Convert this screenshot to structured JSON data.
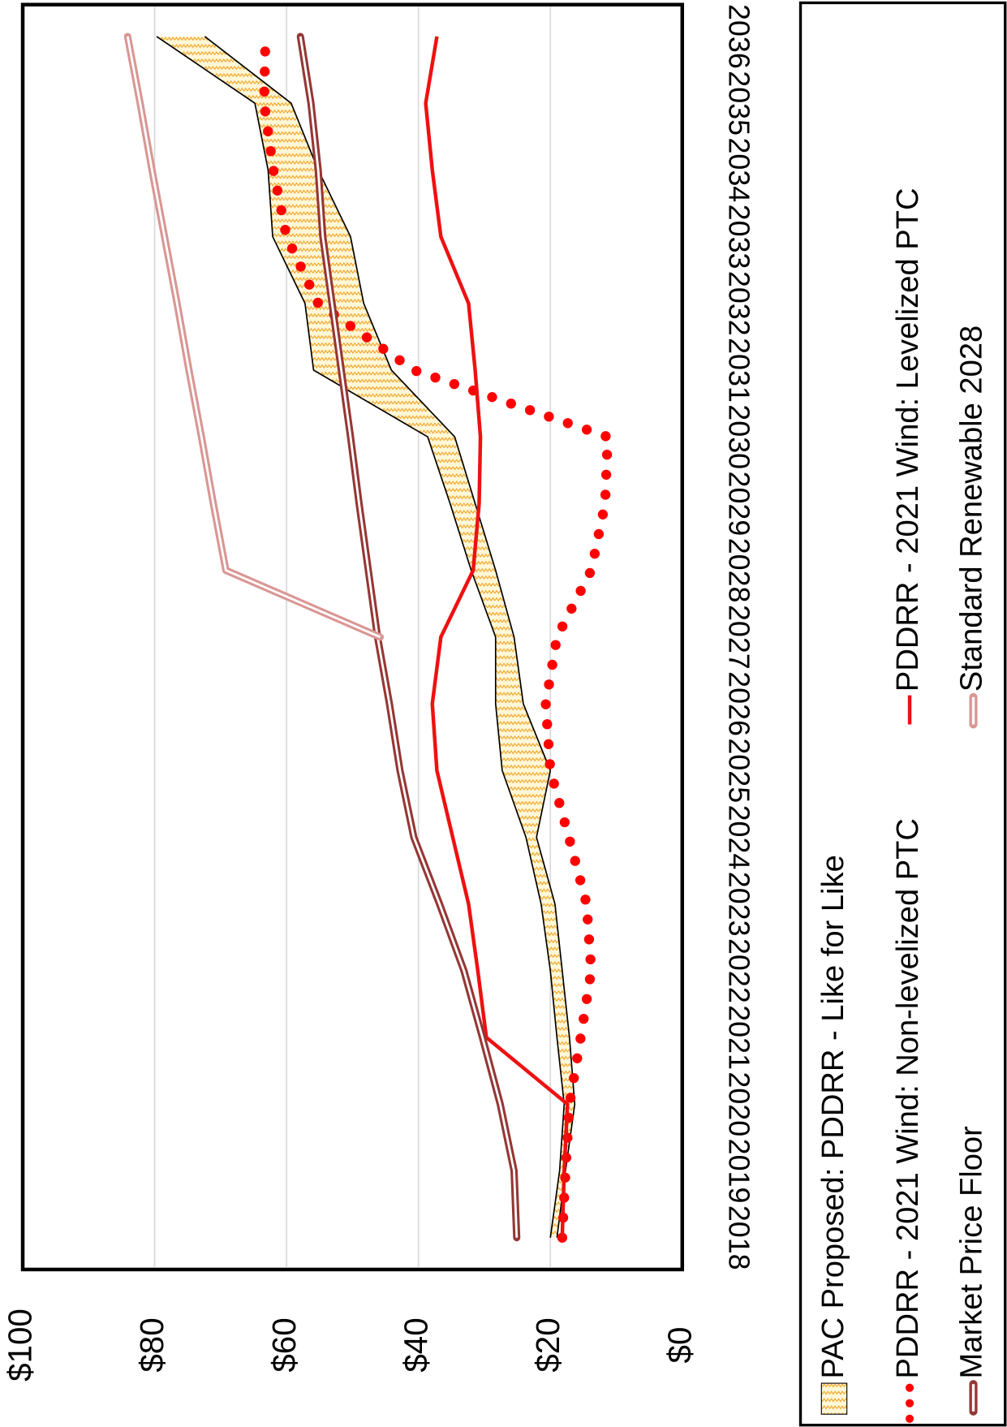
{
  "chart_data": {
    "type": "line",
    "categories": [
      "2018",
      "2019",
      "2020",
      "2021",
      "2022",
      "2023",
      "2024",
      "2025",
      "2026",
      "2027",
      "2028",
      "2029",
      "2030",
      "2031",
      "2032",
      "2033",
      "2034",
      "2035",
      "2036"
    ],
    "series": [
      {
        "name": "PAC Proposed: PDDRR - Like for Like",
        "color": "#f2c14e",
        "values": [
          19,
          17.7,
          16.3,
          17.1,
          18.2,
          19.3,
          22.1,
          20,
          24.1,
          25.5,
          28.3,
          31.4,
          34.5,
          44.1,
          48.3,
          50.3,
          55.2,
          59.3,
          72.4
        ],
        "high": [
          20,
          18.6,
          17.9,
          19,
          20,
          21.4,
          23.7,
          27.3,
          28.3,
          28.3,
          32,
          35.2,
          38.6,
          55.9,
          57.2,
          62.1,
          62.8,
          64.8,
          79.7
        ]
      },
      {
        "name": "PDDRR - 2021 Wind: Non-levelized PTC",
        "color": "#ff0000",
        "values": [
          18.2,
          17.7,
          17.1,
          15.4,
          13.8,
          14.5,
          17.2,
          20,
          20.7,
          19,
          13.8,
          11.7,
          11.3,
          40.7,
          55.2,
          60,
          62,
          63.4,
          63.2
        ]
      },
      {
        "name": "PDDRR - 2021 Wind: Levelized PTC",
        "color": "#ee1111",
        "values": [
          18.2,
          17.9,
          17.4,
          29.7,
          31,
          32.4,
          34.8,
          37.2,
          37.9,
          36.6,
          31.7,
          30.8,
          30.6,
          31.4,
          32.4,
          36.6,
          37.9,
          38.9,
          37.2
        ]
      },
      {
        "name": "Market Price Floor",
        "color": "#953735",
        "values": [
          25.1,
          25.5,
          27.6,
          30.3,
          33.1,
          36.8,
          40.7,
          42.8,
          44.4,
          46.2,
          47.6,
          49,
          50.3,
          51.7,
          53.1,
          54.5,
          55.2,
          56.3,
          57.9
        ]
      },
      {
        "name": "Standard Renewable 2028",
        "color": "#d99694",
        "values": [
          null,
          null,
          null,
          null,
          null,
          null,
          null,
          null,
          null,
          45.8,
          69.2,
          71.1,
          72.9,
          74.8,
          76.6,
          78.5,
          80.4,
          82.2,
          84.1
        ]
      }
    ],
    "ylim": [
      0,
      100
    ],
    "yticks": [
      {
        "value": 0,
        "label": "$0"
      },
      {
        "value": 20,
        "label": "$20"
      },
      {
        "value": 40,
        "label": "$40"
      },
      {
        "value": 60,
        "label": "$60"
      },
      {
        "value": 80,
        "label": "$80"
      },
      {
        "value": 100,
        "label": "$100"
      }
    ],
    "grid": true
  }
}
